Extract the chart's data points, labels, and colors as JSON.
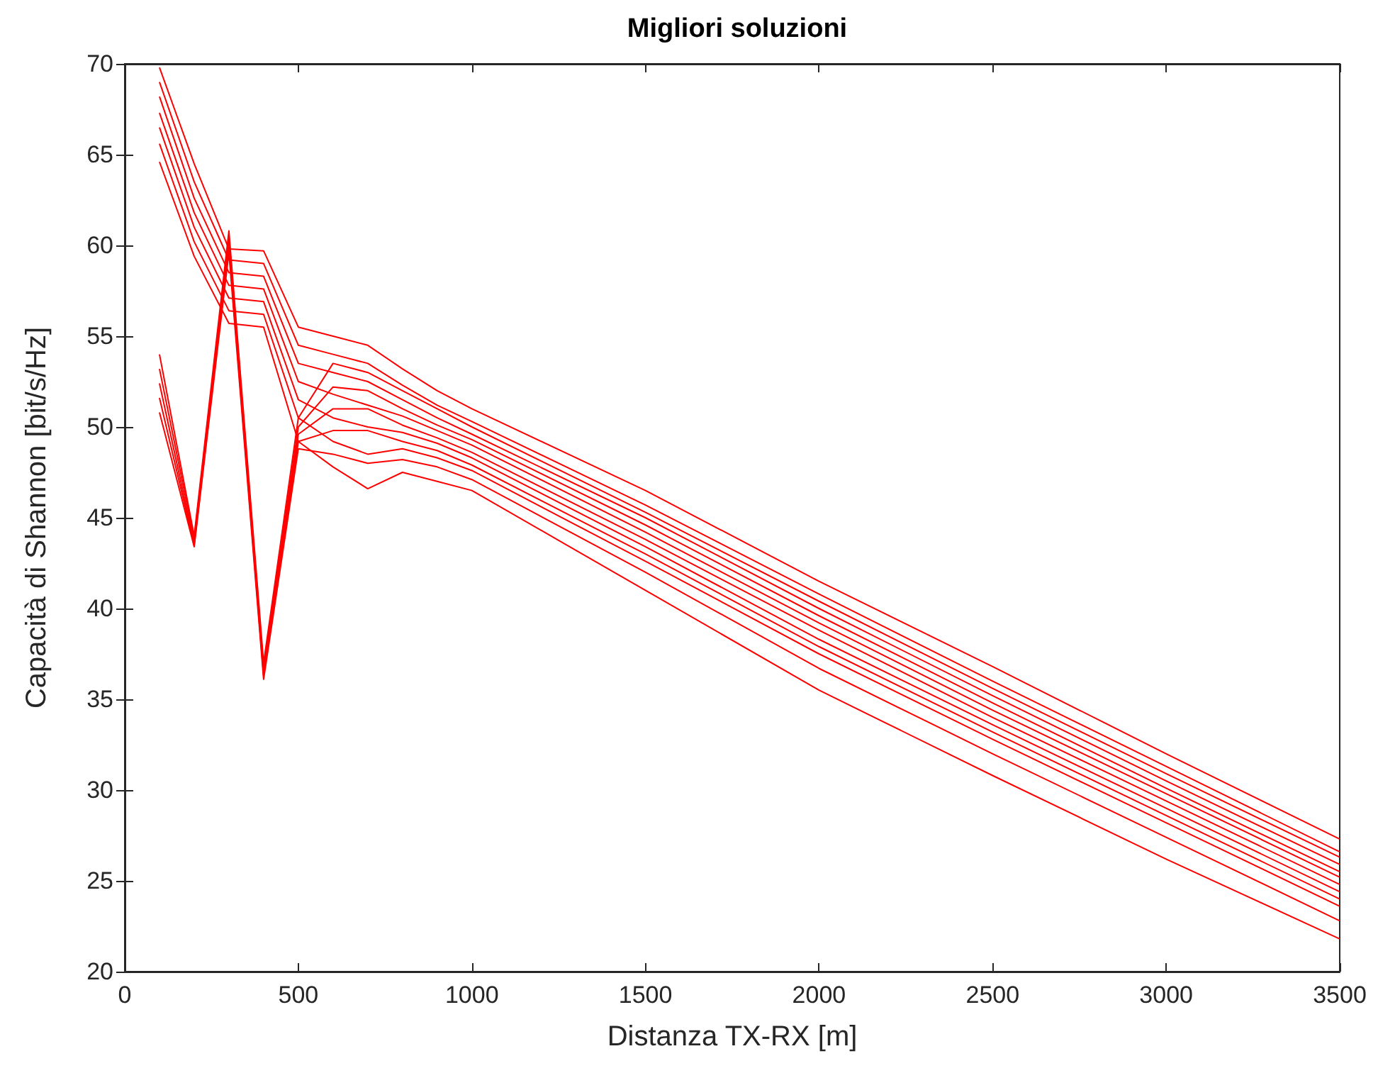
{
  "chart_data": {
    "type": "line",
    "title": "Migliori soluzioni",
    "xlabel": "Distanza TX-RX [m]",
    "ylabel": "Capacità di Shannon [bit/s/Hz]",
    "x": [
      100,
      200,
      300,
      400,
      500,
      600,
      700,
      800,
      900,
      1000,
      1500,
      2000,
      2500,
      3000,
      3500
    ],
    "xlim": [
      0,
      3500
    ],
    "xticks": [
      0,
      500,
      1000,
      1500,
      2000,
      2500,
      3000,
      3500
    ],
    "ylim": [
      20,
      70
    ],
    "yticks": [
      20,
      25,
      30,
      35,
      40,
      45,
      50,
      55,
      60,
      65,
      70
    ],
    "grid": false,
    "series": [
      {
        "color": "#ff0000",
        "values": [
          69.8,
          64.5,
          59.8,
          59.7,
          55.5,
          55.0,
          54.5,
          53.2,
          52.0,
          51.0,
          46.5,
          41.5,
          36.8,
          32.0,
          27.3
        ]
      },
      {
        "color": "#ff0000",
        "values": [
          69.0,
          63.5,
          59.2,
          59.0,
          54.5,
          54.0,
          53.5,
          52.3,
          51.2,
          50.3,
          45.7,
          40.8,
          36.0,
          31.3,
          26.6
        ]
      },
      {
        "color": "#ff0000",
        "values": [
          68.2,
          62.6,
          58.5,
          58.3,
          53.5,
          53.0,
          52.5,
          51.5,
          50.5,
          49.6,
          45.0,
          40.0,
          35.2,
          30.5,
          25.9
        ]
      },
      {
        "color": "#ff0000",
        "values": [
          67.3,
          61.8,
          57.8,
          57.6,
          52.5,
          51.8,
          51.2,
          50.6,
          49.8,
          49.0,
          44.2,
          39.2,
          34.4,
          29.8,
          25.2
        ]
      },
      {
        "color": "#ff0000",
        "values": [
          66.5,
          61.0,
          57.1,
          56.9,
          51.5,
          50.5,
          50.0,
          49.7,
          49.1,
          48.3,
          43.4,
          38.3,
          33.6,
          29.0,
          24.4
        ]
      },
      {
        "color": "#ff0000",
        "values": [
          65.6,
          60.2,
          56.4,
          56.2,
          50.5,
          49.2,
          48.5,
          48.8,
          48.3,
          47.6,
          42.6,
          37.5,
          32.8,
          28.2,
          23.6
        ]
      },
      {
        "color": "#ff0000",
        "values": [
          64.6,
          59.4,
          55.7,
          55.5,
          49.2,
          47.8,
          46.6,
          47.5,
          47.0,
          46.5,
          41.0,
          35.5,
          30.8,
          26.2,
          21.8
        ]
      },
      {
        "color": "#ff0000",
        "values": [
          54.0,
          44.0,
          60.8,
          37.0,
          50.5,
          53.5,
          53.0,
          52.0,
          51.0,
          50.0,
          45.3,
          40.4,
          35.6,
          30.9,
          26.3
        ]
      },
      {
        "color": "#ff0000",
        "values": [
          53.2,
          43.8,
          60.5,
          36.7,
          50.0,
          52.2,
          52.0,
          51.0,
          50.1,
          49.3,
          44.6,
          39.6,
          34.8,
          30.1,
          25.5
        ]
      },
      {
        "color": "#ff0000",
        "values": [
          52.4,
          43.6,
          60.2,
          36.5,
          49.6,
          51.0,
          51.0,
          50.1,
          49.4,
          48.6,
          43.8,
          38.8,
          34.0,
          29.4,
          24.8
        ]
      },
      {
        "color": "#ff0000",
        "values": [
          51.6,
          43.5,
          59.9,
          36.3,
          49.2,
          49.8,
          49.8,
          49.2,
          48.7,
          47.9,
          43.0,
          37.9,
          33.2,
          28.6,
          24.0
        ]
      },
      {
        "color": "#ff0000",
        "values": [
          50.8,
          43.4,
          59.6,
          36.1,
          48.8,
          48.5,
          48.0,
          48.2,
          47.8,
          47.1,
          42.0,
          36.7,
          32.0,
          27.4,
          22.8
        ]
      }
    ]
  }
}
